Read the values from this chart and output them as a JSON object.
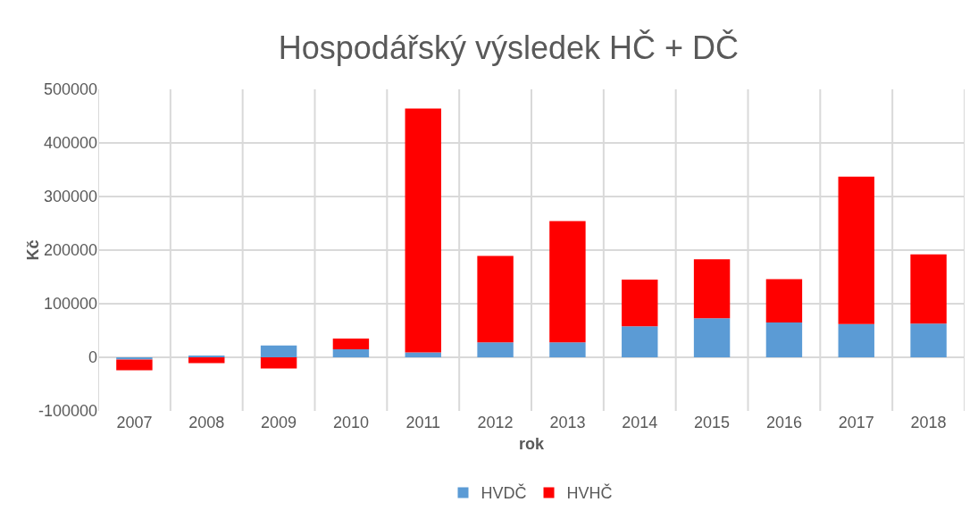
{
  "chart_data": {
    "type": "bar",
    "title": "Hospodářský výsledek HČ + DČ",
    "xlabel": "rok",
    "ylabel": "Kč",
    "categories": [
      "2007",
      "2008",
      "2009",
      "2010",
      "2011",
      "2012",
      "2013",
      "2014",
      "2015",
      "2016",
      "2017",
      "2018"
    ],
    "series": [
      {
        "name": "HVDČ",
        "color": "#5b9bd5",
        "values": [
          -4000,
          3000,
          22000,
          15000,
          9000,
          28000,
          28000,
          58000,
          73000,
          65000,
          62000,
          63000
        ]
      },
      {
        "name": "HVHČ",
        "color": "#ff0000",
        "values": [
          -20000,
          -11000,
          -21000,
          20000,
          455000,
          161000,
          226000,
          87000,
          110000,
          81000,
          275000,
          129000
        ]
      }
    ],
    "stacked": true,
    "ylim": [
      -100000,
      500000
    ],
    "yticks": [
      -100000,
      0,
      100000,
      200000,
      300000,
      400000,
      500000
    ],
    "grid": true,
    "legend": "bottom"
  }
}
